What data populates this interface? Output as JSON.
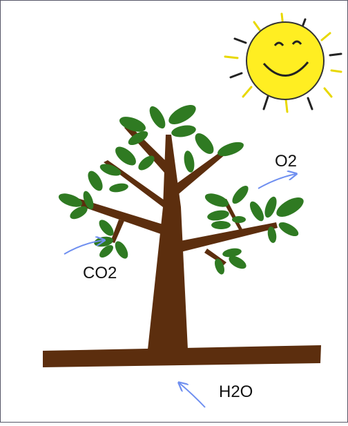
{
  "labels": {
    "o2": "O2",
    "co2": "CO2",
    "h2o": "H2O"
  }
}
